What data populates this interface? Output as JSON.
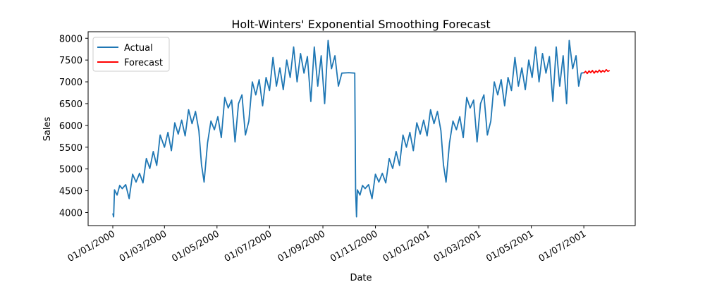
{
  "chart_data": {
    "type": "line",
    "title": "Holt-Winters' Exponential Smoothing Forecast",
    "xlabel": "Date",
    "ylabel": "Sales",
    "x_type": "date",
    "xlim": [
      "2000-01-01",
      "2001-08-01"
    ],
    "ylim": [
      3700,
      8150
    ],
    "yticks": [
      4000,
      4500,
      5000,
      5500,
      6000,
      6500,
      7000,
      7500,
      8000
    ],
    "xticks": [
      {
        "date": "2000-01-01",
        "label": "01/01/2000"
      },
      {
        "date": "2000-03-01",
        "label": "01/03/2000"
      },
      {
        "date": "2000-05-01",
        "label": "01/05/2000"
      },
      {
        "date": "2000-07-01",
        "label": "01/07/2000"
      },
      {
        "date": "2000-09-01",
        "label": "01/09/2000"
      },
      {
        "date": "2000-11-01",
        "label": "01/11/2000"
      },
      {
        "date": "2001-01-01",
        "label": "01/01/2001"
      },
      {
        "date": "2001-03-01",
        "label": "01/03/2001"
      },
      {
        "date": "2001-05-01",
        "label": "01/05/2001"
      },
      {
        "date": "2001-07-01",
        "label": "01/07/2001"
      }
    ],
    "grid": false,
    "legend_position": "top-left",
    "series": [
      {
        "name": "Actual",
        "color": "#1f77b4",
        "points": [
          [
            "2000-01-01",
            3980
          ],
          [
            "2000-01-02",
            3900
          ],
          [
            "2000-01-03",
            4520
          ],
          [
            "2000-01-06",
            4400
          ],
          [
            "2000-01-09",
            4620
          ],
          [
            "2000-01-12",
            4550
          ],
          [
            "2000-01-16",
            4640
          ],
          [
            "2000-01-20",
            4320
          ],
          [
            "2000-01-24",
            4880
          ],
          [
            "2000-01-28",
            4700
          ],
          [
            "2000-02-01",
            4900
          ],
          [
            "2000-02-05",
            4680
          ],
          [
            "2000-02-09",
            5240
          ],
          [
            "2000-02-13",
            5010
          ],
          [
            "2000-02-17",
            5400
          ],
          [
            "2000-02-21",
            5080
          ],
          [
            "2000-02-25",
            5780
          ],
          [
            "2000-03-01",
            5500
          ],
          [
            "2000-03-05",
            5840
          ],
          [
            "2000-03-09",
            5420
          ],
          [
            "2000-03-13",
            6060
          ],
          [
            "2000-03-17",
            5800
          ],
          [
            "2000-03-21",
            6120
          ],
          [
            "2000-03-25",
            5760
          ],
          [
            "2000-03-29",
            6360
          ],
          [
            "2000-04-02",
            6040
          ],
          [
            "2000-04-06",
            6320
          ],
          [
            "2000-04-10",
            5880
          ],
          [
            "2000-04-13",
            5100
          ],
          [
            "2000-04-16",
            4700
          ],
          [
            "2000-04-20",
            5600
          ],
          [
            "2000-04-24",
            6100
          ],
          [
            "2000-04-28",
            5900
          ],
          [
            "2000-05-02",
            6200
          ],
          [
            "2000-05-06",
            5720
          ],
          [
            "2000-05-10",
            6640
          ],
          [
            "2000-05-14",
            6400
          ],
          [
            "2000-05-18",
            6580
          ],
          [
            "2000-05-22",
            5620
          ],
          [
            "2000-05-26",
            6500
          ],
          [
            "2000-05-30",
            6700
          ],
          [
            "2000-06-03",
            5780
          ],
          [
            "2000-06-07",
            6100
          ],
          [
            "2000-06-11",
            7000
          ],
          [
            "2000-06-15",
            6700
          ],
          [
            "2000-06-19",
            7050
          ],
          [
            "2000-06-23",
            6450
          ],
          [
            "2000-06-27",
            7100
          ],
          [
            "2000-07-01",
            6800
          ],
          [
            "2000-07-05",
            7560
          ],
          [
            "2000-07-09",
            6900
          ],
          [
            "2000-07-13",
            7320
          ],
          [
            "2000-07-17",
            6820
          ],
          [
            "2000-07-21",
            7500
          ],
          [
            "2000-07-25",
            7100
          ],
          [
            "2000-07-29",
            7800
          ],
          [
            "2000-08-02",
            7000
          ],
          [
            "2000-08-06",
            7650
          ],
          [
            "2000-08-10",
            7200
          ],
          [
            "2000-08-14",
            7580
          ],
          [
            "2000-08-18",
            6550
          ],
          [
            "2000-08-22",
            7800
          ],
          [
            "2000-08-26",
            6900
          ],
          [
            "2000-08-30",
            7600
          ],
          [
            "2000-09-03",
            6500
          ],
          [
            "2000-09-07",
            7950
          ],
          [
            "2000-09-11",
            7300
          ],
          [
            "2000-09-15",
            7600
          ],
          [
            "2000-09-19",
            6900
          ],
          [
            "2000-09-23",
            7200
          ],
          [
            "2000-10-01",
            7210
          ],
          [
            "2000-10-08",
            7200
          ],
          [
            "2000-10-09",
            4500
          ],
          [
            "2000-10-10",
            3900
          ],
          [
            "2000-10-11",
            4520
          ],
          [
            "2000-10-14",
            4400
          ],
          [
            "2000-10-17",
            4620
          ],
          [
            "2000-10-20",
            4550
          ],
          [
            "2000-10-24",
            4640
          ],
          [
            "2000-10-28",
            4320
          ],
          [
            "2000-11-01",
            4880
          ],
          [
            "2000-11-05",
            4700
          ],
          [
            "2000-11-09",
            4900
          ],
          [
            "2000-11-13",
            4680
          ],
          [
            "2000-11-17",
            5240
          ],
          [
            "2000-11-21",
            5010
          ],
          [
            "2000-11-25",
            5400
          ],
          [
            "2000-11-29",
            5080
          ],
          [
            "2000-12-03",
            5780
          ],
          [
            "2000-12-07",
            5500
          ],
          [
            "2000-12-11",
            5840
          ],
          [
            "2000-12-15",
            5420
          ],
          [
            "2000-12-19",
            6060
          ],
          [
            "2000-12-23",
            5800
          ],
          [
            "2000-12-27",
            6120
          ],
          [
            "2000-12-31",
            5760
          ],
          [
            "2001-01-04",
            6360
          ],
          [
            "2001-01-08",
            6040
          ],
          [
            "2001-01-12",
            6320
          ],
          [
            "2001-01-16",
            5880
          ],
          [
            "2001-01-19",
            5100
          ],
          [
            "2001-01-22",
            4700
          ],
          [
            "2001-01-26",
            5600
          ],
          [
            "2001-01-30",
            6100
          ],
          [
            "2001-02-03",
            5900
          ],
          [
            "2001-02-07",
            6200
          ],
          [
            "2001-02-11",
            5720
          ],
          [
            "2001-02-15",
            6640
          ],
          [
            "2001-02-19",
            6400
          ],
          [
            "2001-02-23",
            6580
          ],
          [
            "2001-02-27",
            5620
          ],
          [
            "2001-03-03",
            6500
          ],
          [
            "2001-03-07",
            6700
          ],
          [
            "2001-03-11",
            5780
          ],
          [
            "2001-03-15",
            6100
          ],
          [
            "2001-03-19",
            7000
          ],
          [
            "2001-03-23",
            6700
          ],
          [
            "2001-03-27",
            7050
          ],
          [
            "2001-03-31",
            6450
          ],
          [
            "2001-04-04",
            7100
          ],
          [
            "2001-04-08",
            6800
          ],
          [
            "2001-04-12",
            7560
          ],
          [
            "2001-04-16",
            6900
          ],
          [
            "2001-04-20",
            7320
          ],
          [
            "2001-04-24",
            6820
          ],
          [
            "2001-04-28",
            7500
          ],
          [
            "2001-05-02",
            7100
          ],
          [
            "2001-05-06",
            7800
          ],
          [
            "2001-05-10",
            7000
          ],
          [
            "2001-05-14",
            7650
          ],
          [
            "2001-05-18",
            7200
          ],
          [
            "2001-05-22",
            7580
          ],
          [
            "2001-05-26",
            6550
          ],
          [
            "2001-05-30",
            7800
          ],
          [
            "2001-06-03",
            6900
          ],
          [
            "2001-06-07",
            7600
          ],
          [
            "2001-06-11",
            6500
          ],
          [
            "2001-06-14",
            7950
          ],
          [
            "2001-06-18",
            7300
          ],
          [
            "2001-06-22",
            7600
          ],
          [
            "2001-06-25",
            6900
          ],
          [
            "2001-06-28",
            7200
          ],
          [
            "2001-07-01",
            7210
          ]
        ]
      },
      {
        "name": "Forecast",
        "color": "#ff0000",
        "points": [
          [
            "2001-07-01",
            7200
          ],
          [
            "2001-07-03",
            7240
          ],
          [
            "2001-07-05",
            7190
          ],
          [
            "2001-07-07",
            7250
          ],
          [
            "2001-07-09",
            7210
          ],
          [
            "2001-07-11",
            7260
          ],
          [
            "2001-07-13",
            7200
          ],
          [
            "2001-07-15",
            7250
          ],
          [
            "2001-07-17",
            7220
          ],
          [
            "2001-07-19",
            7270
          ],
          [
            "2001-07-21",
            7220
          ],
          [
            "2001-07-23",
            7260
          ],
          [
            "2001-07-25",
            7230
          ],
          [
            "2001-07-27",
            7280
          ],
          [
            "2001-07-29",
            7240
          ],
          [
            "2001-07-31",
            7260
          ]
        ]
      }
    ]
  }
}
